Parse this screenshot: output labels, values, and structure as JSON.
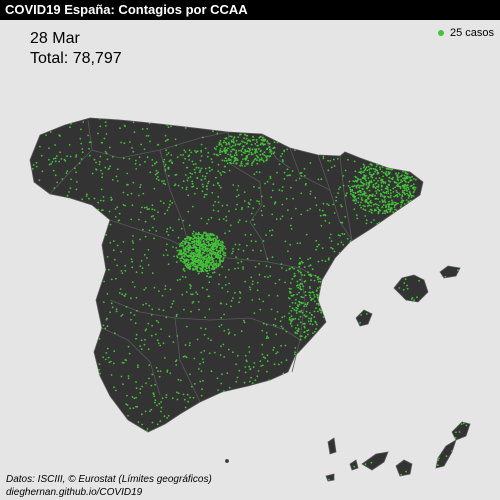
{
  "title": "COVID19 España: Contagios por CCAA",
  "date": "28 Mar",
  "total": "Total: 78,797",
  "legend": {
    "label": "25 casos",
    "color": "#44c23a"
  },
  "credits": {
    "line1": "Datos: ISCIII, © Eurostat (Límites geográficos)",
    "line2": "dieghernan.github.io/COVID19"
  },
  "colors": {
    "land": "#333333",
    "background": "#e5e5e5",
    "borders": "#5a5a5a",
    "dots": "#44c23a"
  }
}
